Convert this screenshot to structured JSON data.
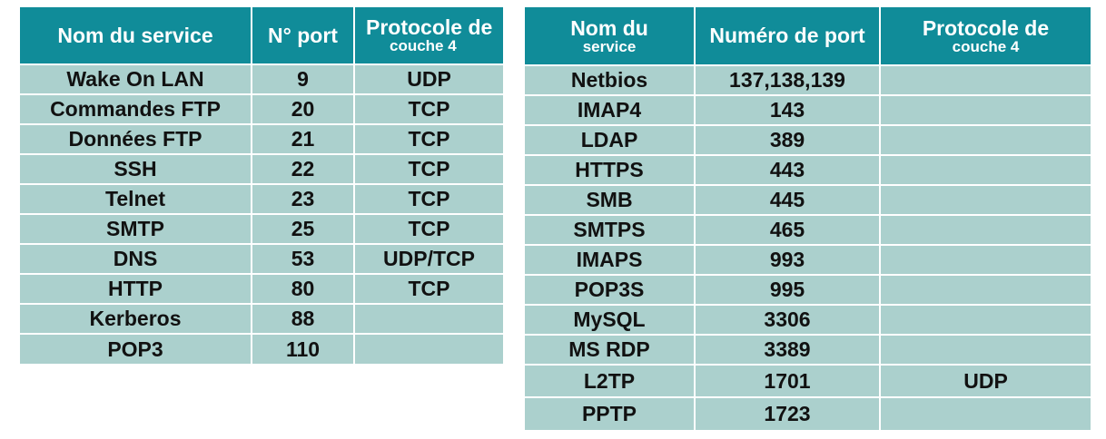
{
  "table_left": {
    "headers": {
      "service": "Nom du service",
      "port": "N° port",
      "protocol_line1": "Protocole de",
      "protocol_line2": "couche 4"
    },
    "rows": [
      {
        "service": "Wake On LAN",
        "port": "9",
        "protocol": "UDP"
      },
      {
        "service": "Commandes FTP",
        "port": "20",
        "protocol": "TCP"
      },
      {
        "service": "Données FTP",
        "port": "21",
        "protocol": "TCP"
      },
      {
        "service": "SSH",
        "port": "22",
        "protocol": "TCP"
      },
      {
        "service": "Telnet",
        "port": "23",
        "protocol": "TCP"
      },
      {
        "service": "SMTP",
        "port": "25",
        "protocol": "TCP"
      },
      {
        "service": "DNS",
        "port": "53",
        "protocol": "UDP/TCP"
      },
      {
        "service": "HTTP",
        "port": "80",
        "protocol": "TCP"
      },
      {
        "service": "Kerberos",
        "port": "88",
        "protocol": ""
      },
      {
        "service": "POP3",
        "port": "110",
        "protocol": ""
      }
    ]
  },
  "table_right": {
    "headers": {
      "service_line1": "Nom du",
      "service_line2": "service",
      "port": "Numéro de port",
      "protocol_line1": "Protocole de",
      "protocol_line2": "couche 4"
    },
    "rows": [
      {
        "service": "Netbios",
        "port": "137,138,139",
        "protocol": ""
      },
      {
        "service": "IMAP4",
        "port": "143",
        "protocol": ""
      },
      {
        "service": "LDAP",
        "port": "389",
        "protocol": ""
      },
      {
        "service": "HTTPS",
        "port": "443",
        "protocol": ""
      },
      {
        "service": "SMB",
        "port": "445",
        "protocol": ""
      },
      {
        "service": "SMTPS",
        "port": "465",
        "protocol": ""
      },
      {
        "service": "IMAPS",
        "port": "993",
        "protocol": ""
      },
      {
        "service": "POP3S",
        "port": "995",
        "protocol": ""
      },
      {
        "service": "MySQL",
        "port": "3306",
        "protocol": ""
      },
      {
        "service": "MS RDP",
        "port": "3389",
        "protocol": ""
      },
      {
        "service": "L2TP",
        "port": "1701",
        "protocol": "UDP"
      },
      {
        "service": "PPTP",
        "port": "1723",
        "protocol": ""
      }
    ]
  },
  "colors": {
    "header_bg": "#108c99",
    "cell_bg": "#abd0cd",
    "header_text": "#ffffff",
    "cell_text": "#111111"
  }
}
